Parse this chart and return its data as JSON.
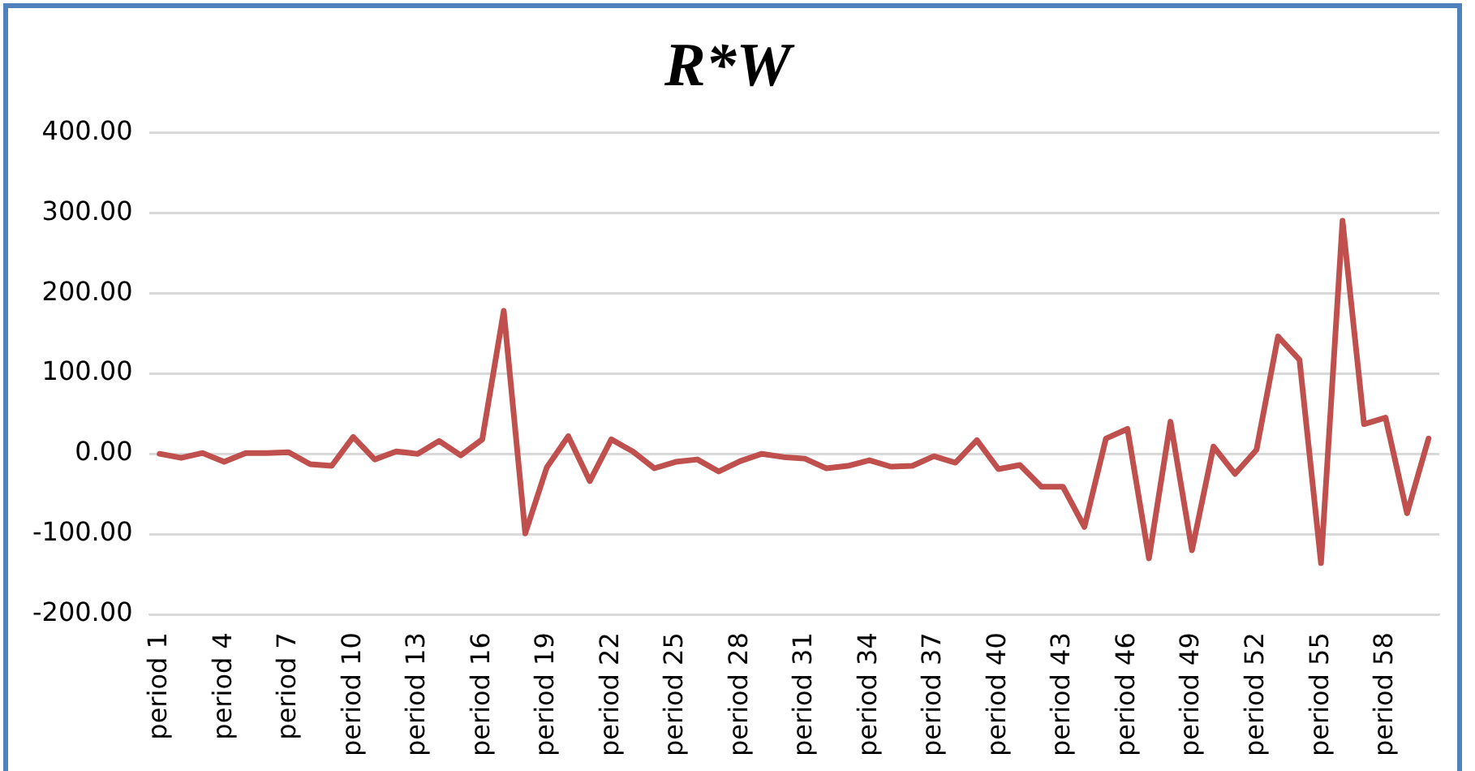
{
  "chart_data": {
    "type": "line",
    "title": "R*W",
    "categories": [
      "period 1",
      null,
      null,
      "period 4",
      null,
      null,
      "period 7",
      null,
      null,
      "period 10",
      null,
      null,
      "period 13",
      null,
      null,
      "period 16",
      null,
      null,
      "period 19",
      null,
      null,
      "period 22",
      null,
      null,
      "period 25",
      null,
      null,
      "period 28",
      null,
      null,
      "period 31",
      null,
      null,
      "period 34",
      null,
      null,
      "period 37",
      null,
      null,
      "period 40",
      null,
      null,
      "period 43",
      null,
      null,
      "period 46",
      null,
      null,
      "period 49",
      null,
      null,
      "period 52",
      null,
      null,
      "period 55",
      null,
      null,
      "period 58",
      null,
      null
    ],
    "series": [
      {
        "color": "#c0504d",
        "values": [
          0,
          -5,
          1,
          -10,
          1,
          1,
          2,
          -13,
          -15,
          21,
          -7,
          3,
          0,
          16,
          -2,
          18,
          178,
          -99,
          -17,
          22,
          -34,
          18,
          3,
          -18,
          -10,
          -7,
          -22,
          -9,
          0,
          -4,
          -6,
          -18,
          -15,
          -8,
          -16,
          -15,
          -3,
          -11,
          17,
          -19,
          -14,
          -41,
          -41,
          -91,
          19,
          31,
          -130,
          40,
          -120,
          9,
          -25,
          5,
          146,
          117,
          -136,
          290,
          37,
          45,
          -74,
          19
        ]
      }
    ],
    "ylim": [
      -200,
      400
    ],
    "yticks": [
      {
        "value": -200,
        "label": "-200.00"
      },
      {
        "value": -100,
        "label": "-100.00"
      },
      {
        "value": 0,
        "label": "0.00"
      },
      {
        "value": 100,
        "label": "100.00"
      },
      {
        "value": 200,
        "label": "200.00"
      },
      {
        "value": 300,
        "label": "300.00"
      },
      {
        "value": 400,
        "label": "400.00"
      }
    ],
    "grid": "y",
    "legend": false,
    "marker": "none",
    "line_style": "solid"
  }
}
